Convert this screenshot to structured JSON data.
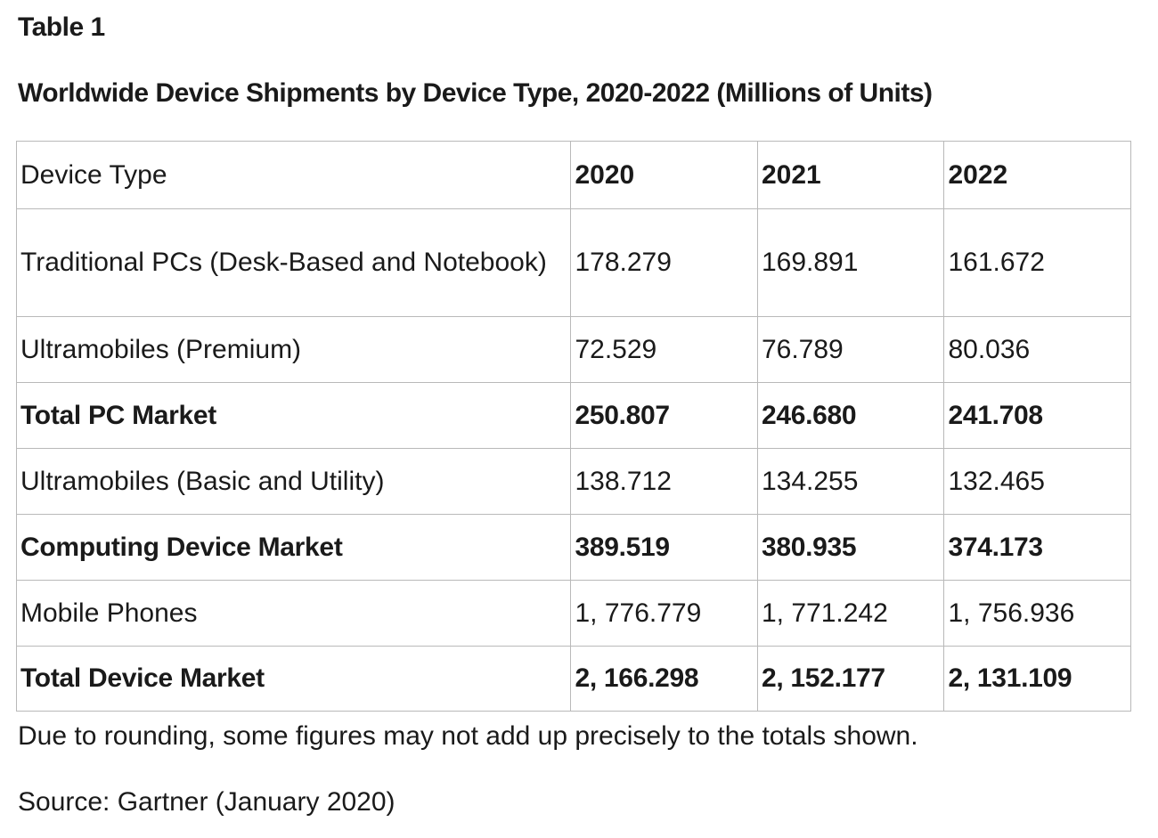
{
  "table_label": "Table 1",
  "title": "Worldwide Device Shipments by Device Type, 2020-2022 (Millions of Units)",
  "header": {
    "device_type": "Device Type",
    "years": [
      "2020",
      "2021",
      "2022"
    ]
  },
  "rows": [
    {
      "label": "Traditional PCs (Desk-Based and Notebook)",
      "values": [
        "178.279",
        "169.891",
        "161.672"
      ],
      "bold": false
    },
    {
      "label": "Ultramobiles (Premium)",
      "values": [
        "72.529",
        "76.789",
        "80.036"
      ],
      "bold": false
    },
    {
      "label": "Total PC Market",
      "values": [
        "250.807",
        "246.680",
        "241.708"
      ],
      "bold": true
    },
    {
      "label": "Ultramobiles (Basic and Utility)",
      "values": [
        "138.712",
        "134.255",
        "132.465"
      ],
      "bold": false
    },
    {
      "label": "Computing Device Market",
      "values": [
        "389.519",
        "380.935",
        "374.173"
      ],
      "bold": true
    },
    {
      "label": "Mobile Phones",
      "values": [
        "1, 776.779",
        "1, 771.242",
        "1, 756.936"
      ],
      "bold": false
    },
    {
      "label": "Total Device Market",
      "values": [
        "2, 166.298",
        "2, 152.177",
        "2, 131.109"
      ],
      "bold": true
    }
  ],
  "note": "Due to rounding, some figures may not add up precisely to the totals shown.",
  "source": "Source: Gartner (January 2020)"
}
